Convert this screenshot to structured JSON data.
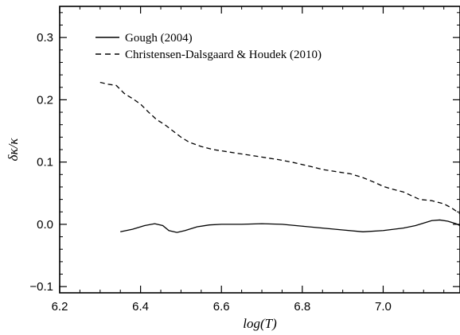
{
  "chart_data": {
    "type": "line",
    "xlabel": "log(T)",
    "ylabel": "δκ/κ",
    "xlim": [
      6.2,
      7.19
    ],
    "ylim": [
      -0.11,
      0.35
    ],
    "x_ticks": [
      "6.2",
      "6.4",
      "6.6",
      "6.8",
      "7.0"
    ],
    "y_ticks": [
      "−0.1",
      "0.0",
      "0.1",
      "0.2",
      "0.3"
    ],
    "legend_position": "top-left",
    "grid": false,
    "series": [
      {
        "name": "Gough (2004)",
        "style": "solid",
        "color": "#000000",
        "points": [
          [
            6.35,
            -0.012
          ],
          [
            6.38,
            -0.008
          ],
          [
            6.41,
            -0.002
          ],
          [
            6.435,
            0.001
          ],
          [
            6.455,
            -0.002
          ],
          [
            6.47,
            -0.01
          ],
          [
            6.49,
            -0.013
          ],
          [
            6.51,
            -0.01
          ],
          [
            6.54,
            -0.004
          ],
          [
            6.57,
            -0.001
          ],
          [
            6.6,
            0.0
          ],
          [
            6.65,
            0.0
          ],
          [
            6.7,
            0.001
          ],
          [
            6.75,
            0.0
          ],
          [
            6.8,
            -0.003
          ],
          [
            6.85,
            -0.006
          ],
          [
            6.9,
            -0.009
          ],
          [
            6.95,
            -0.012
          ],
          [
            7.0,
            -0.01
          ],
          [
            7.05,
            -0.006
          ],
          [
            7.08,
            -0.002
          ],
          [
            7.1,
            0.002
          ],
          [
            7.12,
            0.006
          ],
          [
            7.14,
            0.007
          ],
          [
            7.16,
            0.005
          ],
          [
            7.18,
            0.001
          ],
          [
            7.19,
            -0.002
          ]
        ]
      },
      {
        "name": "Christensen-Dalsgaard & Houdek (2010)",
        "style": "dashed",
        "color": "#000000",
        "points": [
          [
            6.3,
            0.228
          ],
          [
            6.32,
            0.225
          ],
          [
            6.34,
            0.223
          ],
          [
            6.36,
            0.21
          ],
          [
            6.38,
            0.202
          ],
          [
            6.4,
            0.193
          ],
          [
            6.42,
            0.18
          ],
          [
            6.44,
            0.168
          ],
          [
            6.46,
            0.16
          ],
          [
            6.48,
            0.15
          ],
          [
            6.5,
            0.14
          ],
          [
            6.52,
            0.132
          ],
          [
            6.55,
            0.125
          ],
          [
            6.58,
            0.12
          ],
          [
            6.62,
            0.116
          ],
          [
            6.66,
            0.112
          ],
          [
            6.7,
            0.108
          ],
          [
            6.74,
            0.104
          ],
          [
            6.78,
            0.099
          ],
          [
            6.82,
            0.093
          ],
          [
            6.85,
            0.088
          ],
          [
            6.88,
            0.085
          ],
          [
            6.92,
            0.081
          ],
          [
            6.95,
            0.075
          ],
          [
            6.98,
            0.067
          ],
          [
            7.0,
            0.061
          ],
          [
            7.02,
            0.057
          ],
          [
            7.05,
            0.052
          ],
          [
            7.07,
            0.046
          ],
          [
            7.09,
            0.04
          ],
          [
            7.12,
            0.038
          ],
          [
            7.15,
            0.033
          ],
          [
            7.17,
            0.026
          ],
          [
            7.19,
            0.017
          ]
        ]
      }
    ]
  }
}
